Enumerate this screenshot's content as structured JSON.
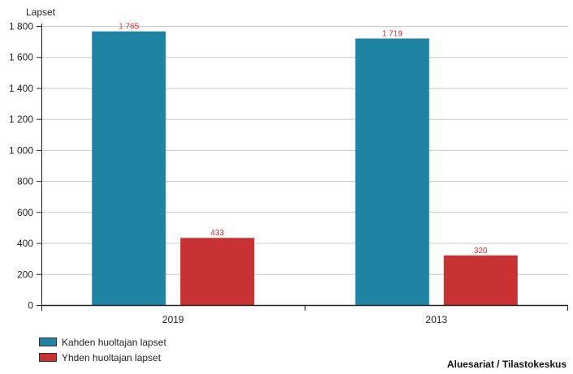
{
  "chart_data": {
    "type": "bar",
    "ylabel": "Lapset",
    "categories": [
      "2019",
      "2013"
    ],
    "series": [
      {
        "name": "Kahden huoltajan lapset",
        "values": [
          1765,
          1719
        ],
        "labels": [
          "1 765",
          "1 719"
        ],
        "color": "#1f84a3"
      },
      {
        "name": "Yhden huoltajan lapset",
        "values": [
          433,
          320
        ],
        "labels": [
          "433",
          "320"
        ],
        "color": "#c83232"
      }
    ],
    "ylim": [
      0,
      1800
    ],
    "yticks": [
      0,
      200,
      400,
      600,
      800,
      1000,
      1200,
      1400,
      1600,
      1800
    ],
    "ytick_labels": [
      "0",
      "200",
      "400",
      "600",
      "800",
      "1 000",
      "1 200",
      "1 400",
      "1 600",
      "1 800"
    ],
    "grid": true,
    "legend_position": "bottom-left",
    "data_label_color": "#e03030"
  },
  "source": "Aluesariat / Tilastokeskus"
}
